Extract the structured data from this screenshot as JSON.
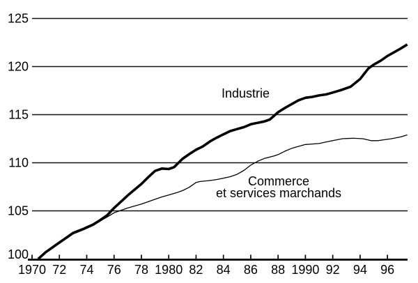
{
  "figure": {
    "background": "#ffffff",
    "ink_color": "#000000"
  },
  "chart_data": {
    "type": "line",
    "title": "",
    "xlabel": "",
    "ylabel": "",
    "xlim": [
      1969.95,
      1997.6
    ],
    "ylim": [
      100,
      125
    ],
    "grid": "horizontal",
    "legend": "inline-labels",
    "y_axis": {
      "ticks": [
        {
          "value": 100,
          "label": "100"
        },
        {
          "value": 105,
          "label": "105"
        },
        {
          "value": 110,
          "label": "110"
        },
        {
          "value": 115,
          "label": "115"
        },
        {
          "value": 120,
          "label": "120"
        },
        {
          "value": 125,
          "label": "125"
        }
      ]
    },
    "x_axis": {
      "ticks": [
        {
          "year": 1970,
          "label": "1970"
        },
        {
          "year": 1972,
          "label": "72"
        },
        {
          "year": 1974,
          "label": "74"
        },
        {
          "year": 1976,
          "label": "76"
        },
        {
          "year": 1978,
          "label": "78"
        },
        {
          "year": 1980,
          "label": "1980"
        },
        {
          "year": 1982,
          "label": "82"
        },
        {
          "year": 1984,
          "label": "84"
        },
        {
          "year": 1986,
          "label": "86"
        },
        {
          "year": 1988,
          "label": "88"
        },
        {
          "year": 1990,
          "label": "1990"
        },
        {
          "year": 1992,
          "label": "92"
        },
        {
          "year": 1994,
          "label": "94"
        },
        {
          "year": 1996,
          "label": "96"
        }
      ]
    },
    "series": [
      {
        "id": "industrie",
        "name": "Industrie",
        "style": "thick",
        "stroke_width": 3.6,
        "points": [
          [
            1970.45,
            100
          ],
          [
            1971,
            100.7
          ],
          [
            1971.5,
            101.2
          ],
          [
            1972,
            101.7
          ],
          [
            1972.5,
            102.2
          ],
          [
            1973,
            102.7
          ],
          [
            1973.8,
            103.15
          ],
          [
            1974.5,
            103.6
          ],
          [
            1975,
            104.05
          ],
          [
            1975.5,
            104.55
          ],
          [
            1976,
            105.3
          ],
          [
            1976.5,
            105.95
          ],
          [
            1977,
            106.6
          ],
          [
            1978,
            107.8
          ],
          [
            1978.5,
            108.5
          ],
          [
            1979,
            109.15
          ],
          [
            1979.5,
            109.4
          ],
          [
            1980,
            109.35
          ],
          [
            1980.4,
            109.55
          ],
          [
            1981,
            110.4
          ],
          [
            1981.5,
            110.9
          ],
          [
            1982,
            111.35
          ],
          [
            1982.5,
            111.7
          ],
          [
            1983,
            112.2
          ],
          [
            1983.5,
            112.6
          ],
          [
            1984,
            112.95
          ],
          [
            1984.5,
            113.3
          ],
          [
            1985,
            113.5
          ],
          [
            1985.5,
            113.7
          ],
          [
            1986,
            114
          ],
          [
            1986.5,
            114.15
          ],
          [
            1987,
            114.3
          ],
          [
            1987.4,
            114.5
          ],
          [
            1988,
            115.25
          ],
          [
            1988.5,
            115.7
          ],
          [
            1989,
            116.1
          ],
          [
            1989.5,
            116.5
          ],
          [
            1990,
            116.75
          ],
          [
            1990.5,
            116.85
          ],
          [
            1991,
            117
          ],
          [
            1991.5,
            117.1
          ],
          [
            1992,
            117.3
          ],
          [
            1992.7,
            117.6
          ],
          [
            1993.3,
            117.9
          ],
          [
            1994,
            118.7
          ],
          [
            1994.6,
            119.8
          ],
          [
            1995,
            120.2
          ],
          [
            1995.5,
            120.6
          ],
          [
            1996,
            121.1
          ],
          [
            1996.5,
            121.5
          ],
          [
            1997,
            121.9
          ],
          [
            1997.45,
            122.3
          ]
        ]
      },
      {
        "id": "commerce-et-services-marchands",
        "name": "Commerce et services marchands",
        "style": "thin",
        "stroke_width": 1.3,
        "points": [
          [
            1970.45,
            100
          ],
          [
            1971,
            100.65
          ],
          [
            1971.5,
            101.15
          ],
          [
            1972,
            101.65
          ],
          [
            1972.5,
            102.1
          ],
          [
            1973,
            102.6
          ],
          [
            1973.8,
            103.05
          ],
          [
            1974.5,
            103.5
          ],
          [
            1975,
            103.95
          ],
          [
            1975.6,
            104.45
          ],
          [
            1976,
            104.8
          ],
          [
            1976.4,
            105
          ],
          [
            1977,
            105.3
          ],
          [
            1978,
            105.7
          ],
          [
            1979,
            106.2
          ],
          [
            1979.5,
            106.45
          ],
          [
            1980,
            106.65
          ],
          [
            1980.6,
            106.9
          ],
          [
            1981,
            107.1
          ],
          [
            1981.5,
            107.45
          ],
          [
            1982,
            107.95
          ],
          [
            1982.3,
            108.05
          ],
          [
            1983,
            108.15
          ],
          [
            1983.5,
            108.25
          ],
          [
            1984,
            108.4
          ],
          [
            1984.5,
            108.55
          ],
          [
            1985,
            108.8
          ],
          [
            1985.5,
            109.2
          ],
          [
            1986,
            109.75
          ],
          [
            1986.5,
            110.15
          ],
          [
            1987,
            110.45
          ],
          [
            1987.7,
            110.7
          ],
          [
            1988,
            110.85
          ],
          [
            1988.5,
            111.2
          ],
          [
            1989,
            111.5
          ],
          [
            1989.5,
            111.7
          ],
          [
            1990,
            111.9
          ],
          [
            1990.5,
            111.95
          ],
          [
            1991,
            112
          ],
          [
            1991.5,
            112.15
          ],
          [
            1992,
            112.3
          ],
          [
            1992.7,
            112.5
          ],
          [
            1993.5,
            112.55
          ],
          [
            1994.2,
            112.5
          ],
          [
            1994.8,
            112.3
          ],
          [
            1995.3,
            112.3
          ],
          [
            1995.8,
            112.4
          ],
          [
            1996.3,
            112.5
          ],
          [
            1997,
            112.7
          ],
          [
            1997.45,
            112.9
          ]
        ]
      }
    ],
    "annotations": [
      {
        "series": "industrie",
        "text": "Industrie"
      },
      {
        "series": "commerce-et-services-marchands",
        "text": "Commerce et services marchands",
        "line1": "Commerce",
        "line2": "et services marchands"
      }
    ]
  }
}
